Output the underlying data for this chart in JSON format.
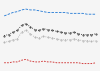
{
  "quarters": [
    0,
    1,
    2,
    3,
    4,
    5,
    6,
    7,
    8,
    9,
    10,
    11,
    12,
    13,
    14,
    15,
    16,
    17,
    18,
    19,
    20,
    21
  ],
  "blue": [
    63,
    65,
    67,
    68,
    70,
    71,
    70,
    70,
    69,
    68,
    67,
    67,
    67,
    67,
    67,
    66,
    66,
    66,
    66,
    65,
    65,
    65
  ],
  "black": [
    40,
    41,
    44,
    46,
    52,
    54,
    50,
    47,
    46,
    48,
    47,
    46,
    45,
    44,
    43,
    43,
    44,
    42,
    41,
    41,
    41,
    42
  ],
  "gray": [
    32,
    33,
    35,
    36,
    44,
    46,
    42,
    38,
    37,
    39,
    38,
    37,
    36,
    35,
    35,
    35,
    36,
    35,
    34,
    34,
    33,
    34
  ],
  "red": [
    8,
    8,
    9,
    9,
    11,
    12,
    10,
    9,
    9,
    10,
    9,
    9,
    8,
    8,
    8,
    8,
    8,
    8,
    7,
    7,
    7,
    8
  ],
  "blue_color": "#1f77d4",
  "black_color": "#222222",
  "gray_color": "#aaaaaa",
  "red_color": "#cc2222",
  "bg_color": "#f5f5f5",
  "ylim": [
    0,
    80
  ],
  "figsize": [
    1.0,
    0.71
  ],
  "dpi": 100
}
